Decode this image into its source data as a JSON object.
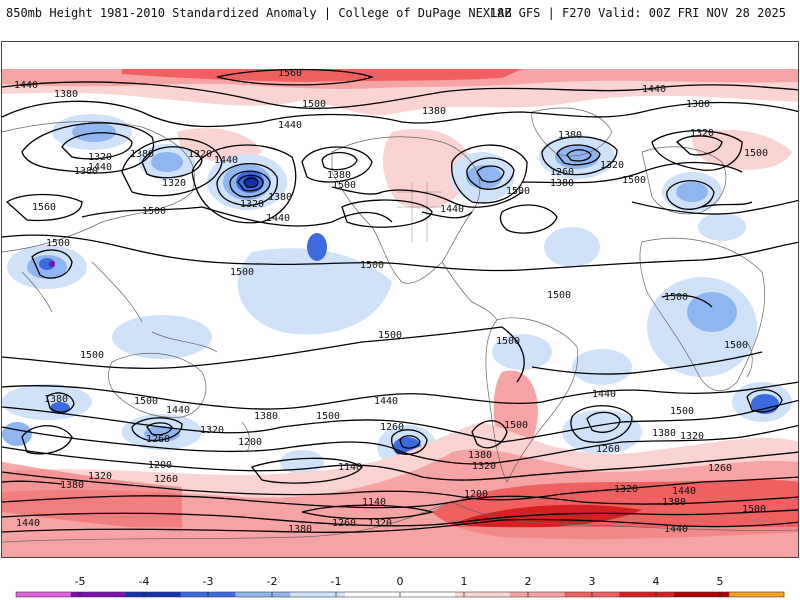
{
  "header": {
    "title": "850mb Height 1981-2010 Standardized Anomaly | College of DuPage NEXLAB",
    "run_info": "18Z GFS | F270 Valid: 00Z FRI NOV 28 2025"
  },
  "legend": {
    "ticks": [
      "-5",
      "-4",
      "-3",
      "-2",
      "-1",
      "0",
      "1",
      "2",
      "3",
      "4",
      "5"
    ],
    "colors": {
      "n5": "#e060e0",
      "n4": "#7a10b0",
      "n3": "#1030b0",
      "n2": "#3c6be0",
      "n1": "#8fb6f0",
      "n05": "#cfe2fa",
      "zero": "#ffffff",
      "p05": "#fbd3d3",
      "p1": "#f5a3a3",
      "p2": "#ef6060",
      "p3": "#d42020",
      "p4": "#b00000",
      "p5": "#f5a020"
    }
  },
  "contour_labels": [
    {
      "id": "l1",
      "text": "1560"
    },
    {
      "id": "l2",
      "text": "1440"
    },
    {
      "id": "l3",
      "text": "1380"
    },
    {
      "id": "l4",
      "text": "1500"
    },
    {
      "id": "l5",
      "text": "1440"
    },
    {
      "id": "l6",
      "text": "1320"
    },
    {
      "id": "l7",
      "text": "1380"
    },
    {
      "id": "l8",
      "text": "1440"
    },
    {
      "id": "l9",
      "text": "1380"
    },
    {
      "id": "l10",
      "text": "1320"
    },
    {
      "id": "l11",
      "text": "1320"
    },
    {
      "id": "l12",
      "text": "1440"
    },
    {
      "id": "l13",
      "text": "1380"
    },
    {
      "id": "l14",
      "text": "1320"
    },
    {
      "id": "l15",
      "text": "1500"
    },
    {
      "id": "l16",
      "text": "1560"
    },
    {
      "id": "l17",
      "text": "1500"
    },
    {
      "id": "l18",
      "text": "1440"
    },
    {
      "id": "l19",
      "text": "1380"
    },
    {
      "id": "l20",
      "text": "1500"
    },
    {
      "id": "l21",
      "text": "1380"
    },
    {
      "id": "l22",
      "text": "1440"
    },
    {
      "id": "l23",
      "text": "1500"
    },
    {
      "id": "l24",
      "text": "1500"
    },
    {
      "id": "l25",
      "text": "1380"
    },
    {
      "id": "l26",
      "text": "1260"
    },
    {
      "id": "l27",
      "text": "1320"
    },
    {
      "id": "l28",
      "text": "1380"
    },
    {
      "id": "l29",
      "text": "1500"
    },
    {
      "id": "l30",
      "text": "1500"
    },
    {
      "id": "l31",
      "text": "1440"
    },
    {
      "id": "l32",
      "text": "1380"
    },
    {
      "id": "l33",
      "text": "1320"
    },
    {
      "id": "l34",
      "text": "1500"
    },
    {
      "id": "l35",
      "text": "1500"
    },
    {
      "id": "l36",
      "text": "1500"
    },
    {
      "id": "l37",
      "text": "1500"
    },
    {
      "id": "l38",
      "text": "1500"
    },
    {
      "id": "l39",
      "text": "1500"
    },
    {
      "id": "l40",
      "text": "1500"
    },
    {
      "id": "l41",
      "text": "1380"
    },
    {
      "id": "l42",
      "text": "1500"
    },
    {
      "id": "l43",
      "text": "1440"
    },
    {
      "id": "l44",
      "text": "1380"
    },
    {
      "id": "l45",
      "text": "1500"
    },
    {
      "id": "l46",
      "text": "1440"
    },
    {
      "id": "l47",
      "text": "1260"
    },
    {
      "id": "l48",
      "text": "1500"
    },
    {
      "id": "l49",
      "text": "1440"
    },
    {
      "id": "l50",
      "text": "1500"
    },
    {
      "id": "l51",
      "text": "1380"
    },
    {
      "id": "l52",
      "text": "1320"
    },
    {
      "id": "l53",
      "text": "1260"
    },
    {
      "id": "l54",
      "text": "1320"
    },
    {
      "id": "l55",
      "text": "1260"
    },
    {
      "id": "l56",
      "text": "1200"
    },
    {
      "id": "l57",
      "text": "1140"
    },
    {
      "id": "l58",
      "text": "1200"
    },
    {
      "id": "l59",
      "text": "1260"
    },
    {
      "id": "l60",
      "text": "1320"
    },
    {
      "id": "l61",
      "text": "1380"
    },
    {
      "id": "l62",
      "text": "1380"
    },
    {
      "id": "l63",
      "text": "1320"
    },
    {
      "id": "l64",
      "text": "1200"
    },
    {
      "id": "l65",
      "text": "1140"
    },
    {
      "id": "l66",
      "text": "1260"
    },
    {
      "id": "l67",
      "text": "1320"
    },
    {
      "id": "l68",
      "text": "1380"
    },
    {
      "id": "l69",
      "text": "1320"
    },
    {
      "id": "l70",
      "text": "1380"
    },
    {
      "id": "l71",
      "text": "1260"
    },
    {
      "id": "l72",
      "text": "1440"
    },
    {
      "id": "l73",
      "text": "1500"
    },
    {
      "id": "l74",
      "text": "1440"
    },
    {
      "id": "l75",
      "text": "1440"
    }
  ]
}
